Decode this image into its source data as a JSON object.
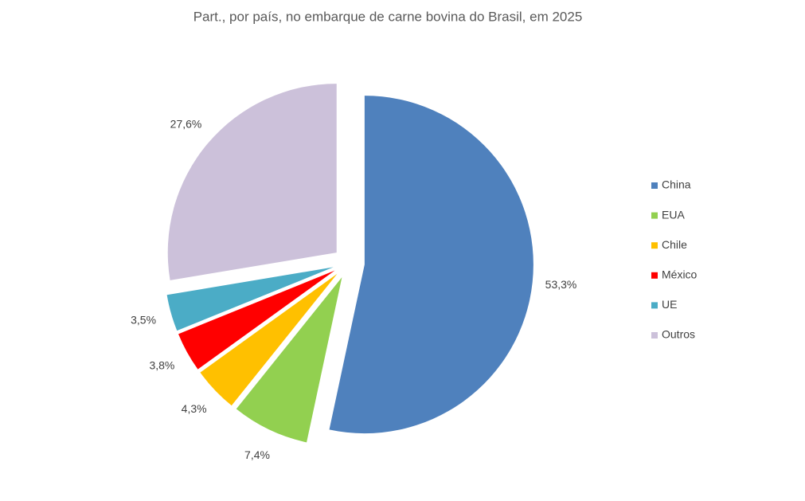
{
  "chart_data": {
    "type": "pie",
    "title": "Part., por país, no embarque de carne bovina do Brasil, em 2025",
    "categories": [
      "China",
      "EUA",
      "Chile",
      "México",
      "UE",
      "Outros"
    ],
    "values": [
      53.3,
      7.4,
      4.3,
      3.8,
      3.5,
      27.6
    ],
    "value_labels": [
      "53,3%",
      "7,4%",
      "4,3%",
      "3,8%",
      "3,5%",
      "27,6%"
    ],
    "colors": [
      "#4f81bd",
      "#92d050",
      "#ffc000",
      "#ff0000",
      "#4bacc6",
      "#ccc1da"
    ],
    "legend": "right"
  }
}
